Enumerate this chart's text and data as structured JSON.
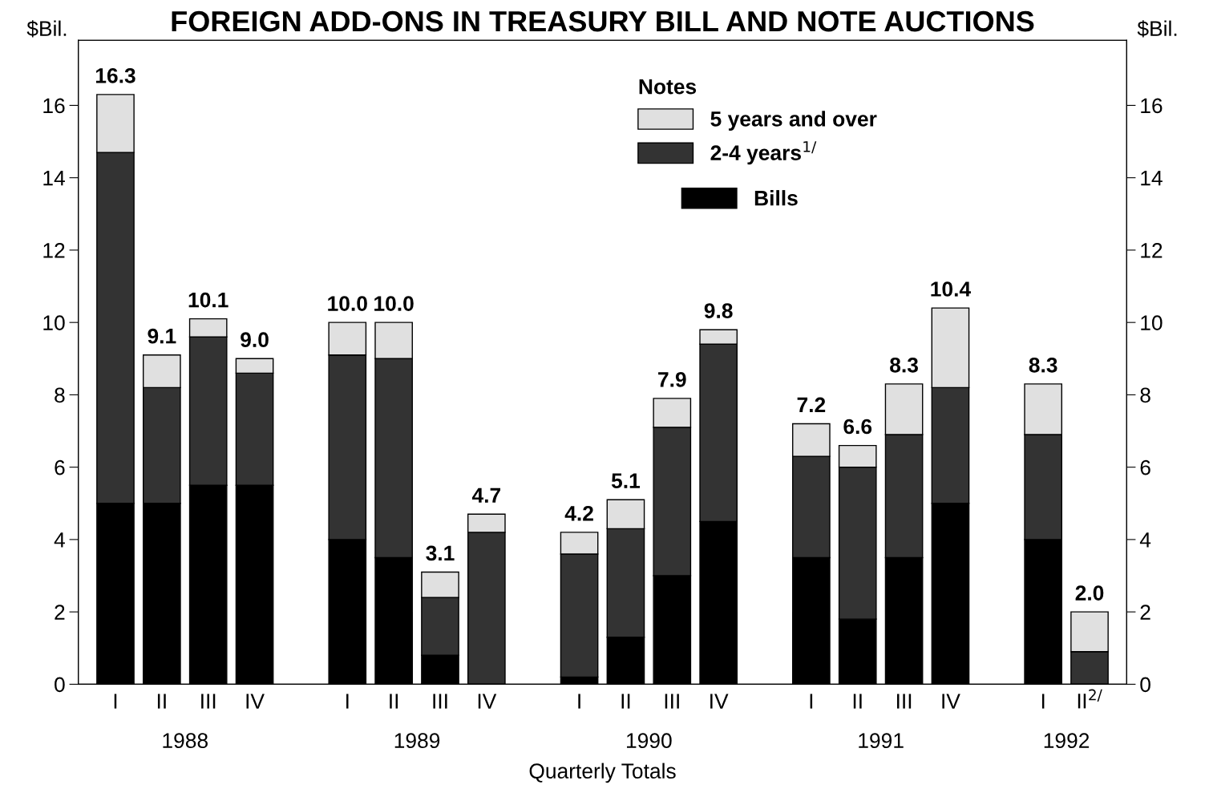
{
  "chart_data": {
    "type": "bar",
    "stacked": true,
    "title": "FOREIGN ADD-ONS IN TREASURY BILL AND NOTE AUCTIONS",
    "xlabel": "Quarterly Totals",
    "ylabel": "$Bil.",
    "y2label": "$Bil.",
    "legend_title": "Notes",
    "legend": "top right",
    "categories": [
      "I",
      "II",
      "III",
      "IV",
      null,
      "I",
      "II",
      "III",
      "IV",
      null,
      "I",
      "II",
      "III",
      "IV",
      null,
      "I",
      "II",
      "III",
      "IV",
      null,
      "I",
      "II$^{2/}$"
    ],
    "series": [
      {
        "name": "Bills",
        "color": "#000000",
        "values": [
          5.0,
          5.0,
          5.5,
          5.5,
          null,
          4.0,
          3.5,
          0.8,
          0,
          null,
          0.2,
          1.3,
          3.0,
          4.5,
          null,
          3.5,
          1.8,
          3.5,
          5.0,
          null,
          4.0,
          0
        ]
      },
      {
        "name": "2-4 years$^{1/}$",
        "color": "#333333",
        "values": [
          9.7,
          3.2,
          4.1,
          3.1,
          null,
          5.1,
          5.5,
          1.6,
          4.2,
          null,
          3.4,
          3.0,
          4.1,
          4.9,
          null,
          2.8,
          4.2,
          3.4,
          3.2,
          null,
          2.9,
          0.9
        ]
      },
      {
        "name": "5 years and over",
        "color": "#e0e0e0",
        "values": [
          1.6,
          0.9,
          0.5,
          0.4,
          null,
          0.9,
          1.0,
          0.7,
          0.5,
          null,
          0.6,
          0.8,
          0.8,
          0.4,
          null,
          0.9,
          0.6,
          1.4,
          2.2,
          null,
          1.4,
          1.1
        ]
      }
    ],
    "totals": [
      "16.3",
      "9.1",
      "10.1",
      "9.0",
      null,
      "10.0",
      "10.0",
      "3.1",
      "4.7",
      null,
      "4.2",
      "5.1",
      "7.9",
      "9.8",
      null,
      "7.2",
      "6.6",
      "8.3",
      "10.4",
      null,
      "8.3",
      "2.0"
    ],
    "annotations": [
      "1988",
      "1989",
      "1990",
      "1991",
      "1992"
    ],
    "ylim": [
      0,
      17.8
    ],
    "yticks": [
      0,
      2,
      4,
      6,
      8,
      10,
      12,
      14,
      16
    ],
    "y2lim": [
      0,
      17.8
    ],
    "y2ticks": [
      0,
      2,
      4,
      6,
      8,
      10,
      12,
      14,
      16
    ],
    "grid": false
  }
}
